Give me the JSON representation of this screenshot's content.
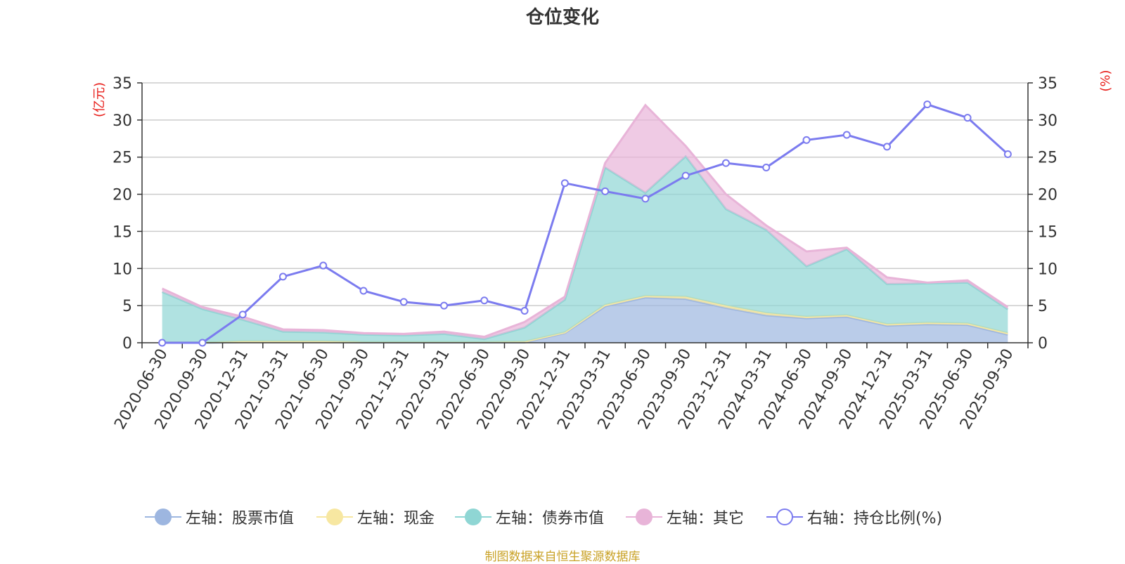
{
  "title": "仓位变化",
  "footer": "制图数据来自恒生聚源数据库",
  "chart_data": {
    "type": "area",
    "title": "仓位变化",
    "categories": [
      "2020-06-30",
      "2020-09-30",
      "2020-12-31",
      "2021-03-31",
      "2021-06-30",
      "2021-09-30",
      "2021-12-31",
      "2022-03-31",
      "2022-06-30",
      "2022-09-30",
      "2022-12-31",
      "2023-03-31",
      "2023-06-30",
      "2023-09-30",
      "2023-12-31",
      "2024-03-31",
      "2024-06-30",
      "2024-09-30",
      "2024-12-31",
      "2025-03-31",
      "2025-06-30",
      "2025-09-30"
    ],
    "left_axis": {
      "label": "(亿元)",
      "ylim": [
        0,
        35
      ],
      "ticks": [
        0,
        5,
        10,
        15,
        20,
        25,
        30,
        35
      ]
    },
    "right_axis": {
      "label": "(%)",
      "ylim": [
        0,
        35
      ],
      "ticks": [
        0,
        5,
        10,
        15,
        20,
        25,
        30,
        35
      ]
    },
    "stacked_series": [
      {
        "name": "左轴：股票市值",
        "color": "#9db6e0",
        "values": [
          0,
          0,
          0.1,
          0.1,
          0.1,
          0.05,
          0.05,
          0.05,
          0.05,
          0.05,
          1.3,
          4.9,
          6.1,
          5.9,
          4.7,
          3.7,
          3.3,
          3.5,
          2.3,
          2.5,
          2.4,
          1.1
        ]
      },
      {
        "name": "左轴：现金",
        "color": "#f7e7a1",
        "values": [
          0.05,
          0.05,
          0.1,
          0.1,
          0.1,
          0.05,
          0.05,
          0.05,
          0.05,
          0.1,
          0.1,
          0.2,
          0.2,
          0.3,
          0.3,
          0.3,
          0.2,
          0.2,
          0.2,
          0.2,
          0.2,
          0.2
        ]
      },
      {
        "name": "左轴：债券市值",
        "color": "#8fd6d4",
        "values": [
          6.8,
          4.5,
          2.9,
          1.3,
          1.2,
          1.0,
          0.9,
          1.1,
          0.4,
          1.9,
          4.4,
          18.5,
          13.9,
          18.9,
          13.0,
          11.2,
          6.8,
          8.9,
          5.4,
          5.3,
          5.5,
          3.2
        ]
      },
      {
        "name": "左轴：其它",
        "color": "#e8b4d8",
        "values": [
          0.45,
          0.25,
          0.4,
          0.3,
          0.3,
          0.2,
          0.2,
          0.3,
          0.3,
          0.75,
          0.4,
          0.6,
          11.8,
          1.4,
          2.0,
          0.6,
          2.0,
          0.2,
          0.9,
          0.1,
          0.3,
          0.3
        ]
      }
    ],
    "line_series": {
      "name": "右轴：持仓比例(%)",
      "color": "#7b7bef",
      "values": [
        0,
        0,
        3.8,
        8.9,
        10.4,
        7.0,
        5.5,
        5.0,
        5.7,
        4.3,
        21.5,
        20.4,
        19.4,
        22.5,
        24.2,
        23.6,
        27.3,
        28.0,
        26.4,
        32.1,
        30.3,
        25.4
      ]
    }
  }
}
